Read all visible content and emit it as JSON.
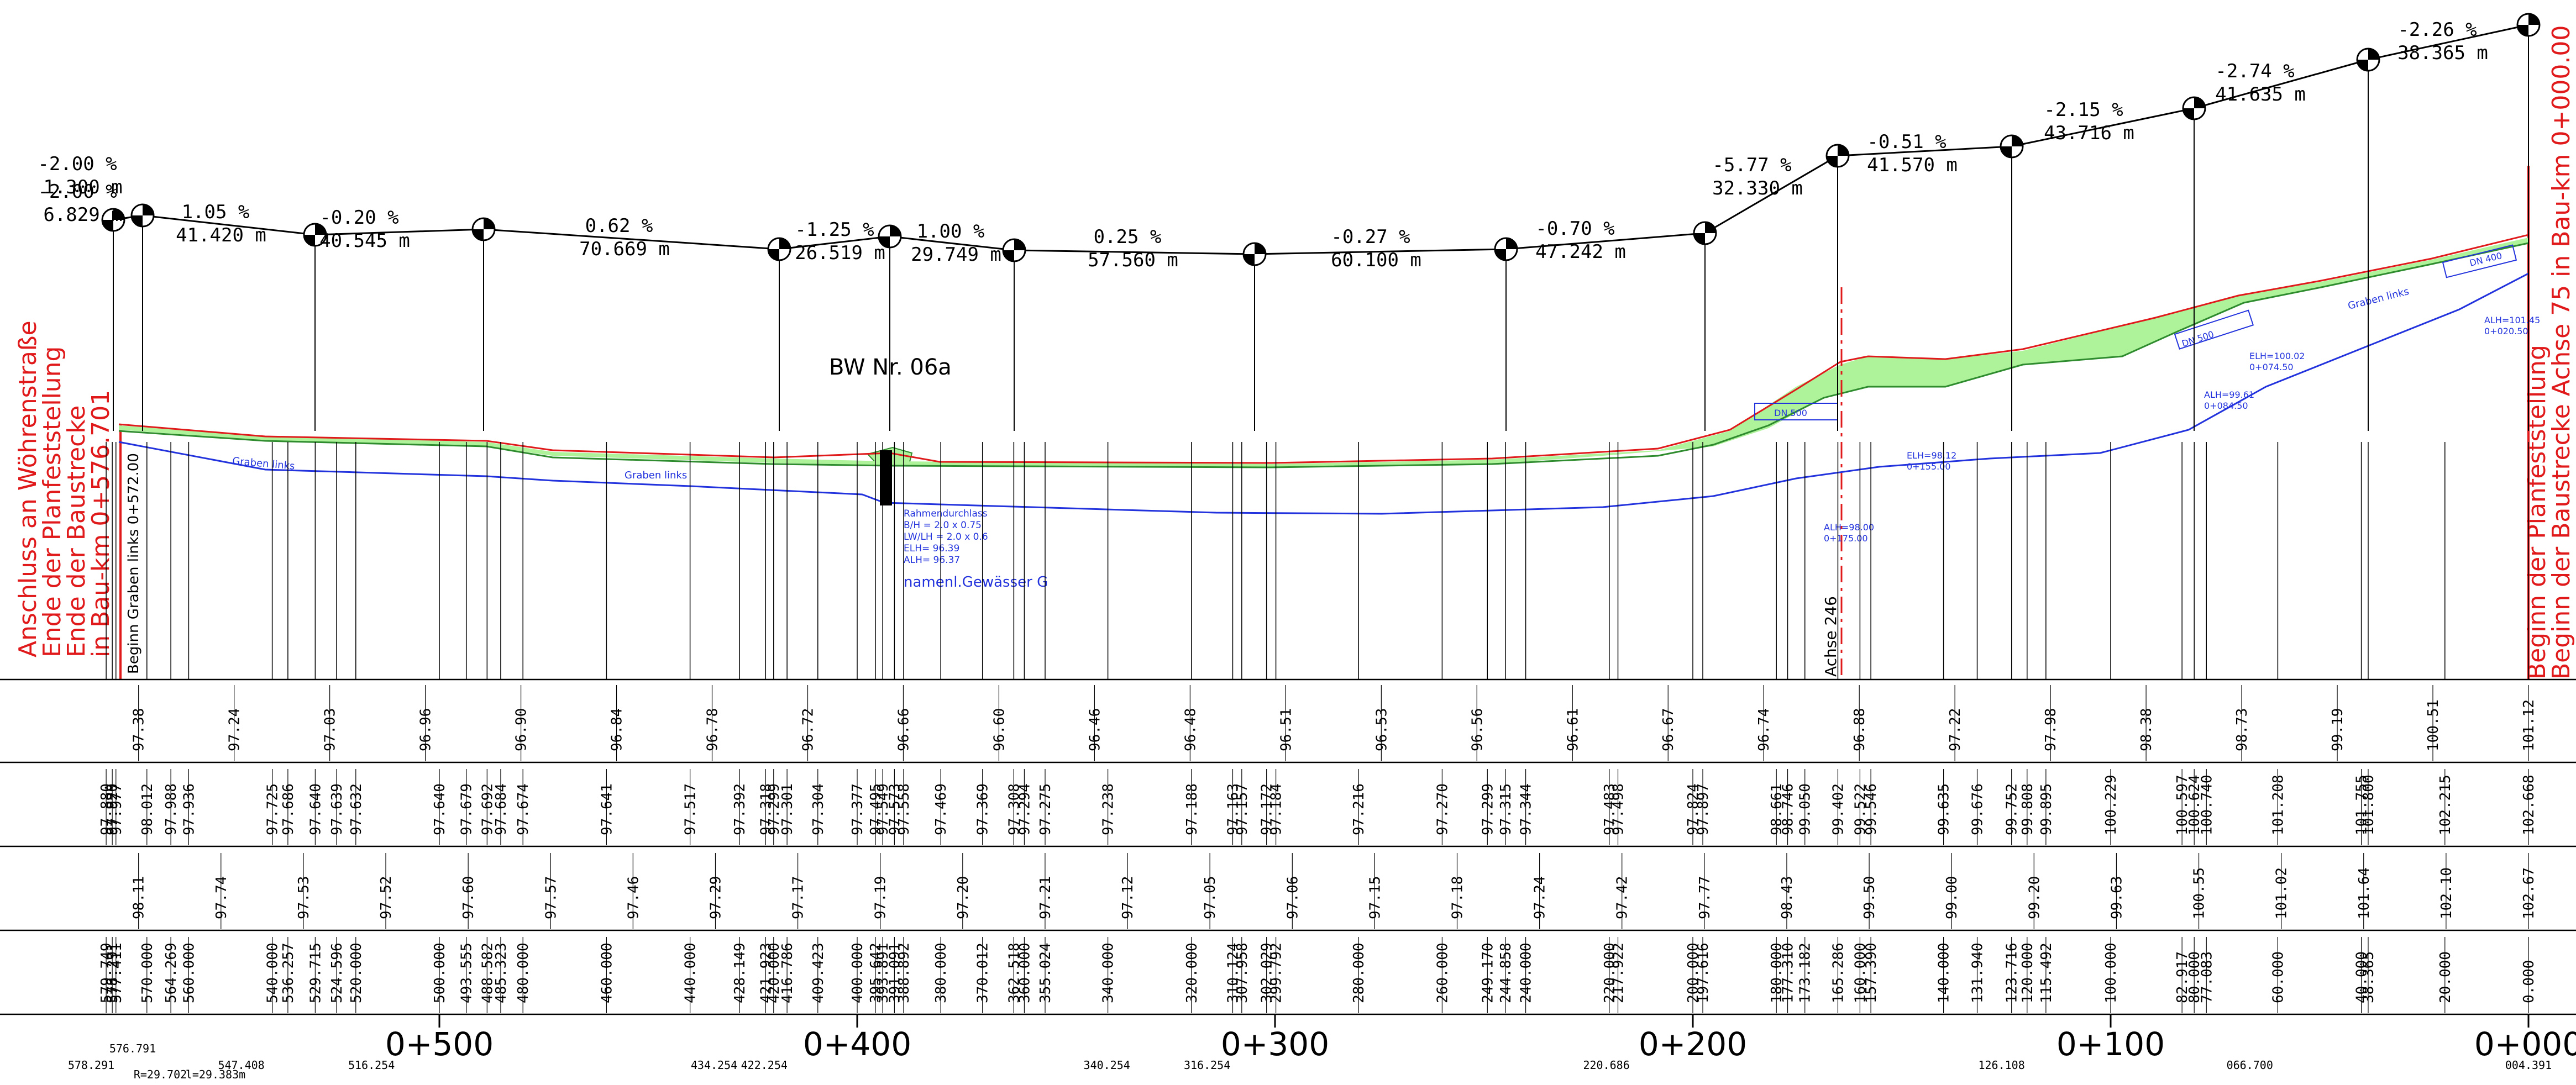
{
  "drawing": {
    "structure_label": "BW Nr.  06a",
    "axis_label": "Achse 246",
    "ditch_label": "Graben links",
    "begin_ditch": "Beginn Graben links 0+572.00",
    "culvert": {
      "lines": [
        "Rahmendurchlass",
        "B/H      = 2.0 x 0.75",
        "LW/LH  = 2.0 x 0.6",
        "ELH= 96.39",
        "ALH= 96.37"
      ],
      "water": "namenl.Gewässer G"
    },
    "pipes": [
      {
        "dn": "DN 500",
        "alh": "ALH=98.00",
        "pos": "0+175.00"
      },
      {
        "elh": "ELH=98.12",
        "pos": "0+155.00"
      },
      {
        "dn": "DN 500",
        "alh": "ALH=99.61",
        "pos": "0+084.50"
      },
      {
        "elh": "ELH=100.02",
        "pos": "0+074.50"
      },
      {
        "dn": "DN 400",
        "alh": "ALH=101.45",
        "pos": "0+020.50"
      }
    ],
    "left_note": [
      "Anschluss an Wöhrenstraße",
      "Ende der Planfeststellung",
      "Ende der Baustrecke",
      "in Bau-km 0+576.701"
    ],
    "right_note": [
      "Beginn der Planfeststellung",
      "Beginn der Baustrecke Achse 75 in Bau-km 0+000.00"
    ]
  },
  "colors": {
    "ground": "#e0191b",
    "design_green": "#2e8b2e",
    "fill_green": "#aef29a",
    "ditch_blue": "#2233dd",
    "boundary_red": "#e0191b"
  },
  "grade_profile": {
    "segments": [
      {
        "grade": "-2.00 %",
        "length": "1.300 m"
      },
      {
        "grade": "-2.00 %",
        "length": "6.829 m"
      },
      {
        "grade": "1.05 %",
        "length": "41.420 m"
      },
      {
        "grade": "-0.20 %",
        "length": "40.545 m"
      },
      {
        "grade": "0.62 %",
        "length": "70.669 m"
      },
      {
        "grade": "-1.25 %",
        "length": "26.519 m"
      },
      {
        "grade": "1.00 %",
        "length": "29.749 m"
      },
      {
        "grade": "0.25 %",
        "length": "57.560 m"
      },
      {
        "grade": "-0.27 %",
        "length": "60.100 m"
      },
      {
        "grade": "-0.70 %",
        "length": "47.242 m"
      },
      {
        "grade": "-5.77 %",
        "length": "32.330 m"
      },
      {
        "grade": "-0.51 %",
        "length": "41.570 m"
      },
      {
        "grade": "-2.15 %",
        "length": "43.716 m"
      },
      {
        "grade": "-2.74 %",
        "length": "41.635 m"
      },
      {
        "grade": "-2.26 %",
        "length": "38.365 m"
      }
    ]
  },
  "band_ground": [
    "97.38",
    "97.24",
    "97.03",
    "96.96",
    "96.90",
    "96.84",
    "96.78",
    "96.72",
    "96.66",
    "96.60",
    "96.46",
    "96.48",
    "96.51",
    "96.53",
    "96.56",
    "96.61",
    "96.67",
    "96.74",
    "96.88",
    "97.22",
    "97.98",
    "98.38",
    "98.73",
    "99.19",
    "100.51",
    "101.12"
  ],
  "band_design": [
    "97.880",
    "97.920",
    "97.977",
    "98.012",
    "97.988",
    "97.936",
    "97.725",
    "97.686",
    "97.640",
    "97.639",
    "97.632",
    "97.640",
    "97.679",
    "97.692",
    "97.684",
    "97.674",
    "97.641",
    "97.517",
    "97.392",
    "97.318",
    "97.299",
    "97.301",
    "97.304",
    "97.377",
    "97.495",
    "97.549",
    "97.573",
    "97.558",
    "97.469",
    "97.369",
    "97.308",
    "97.294",
    "97.275",
    "97.238",
    "97.188",
    "97.163",
    "97.157",
    "97.172",
    "97.184",
    "97.216",
    "97.270",
    "97.299",
    "97.315",
    "97.344",
    "97.483",
    "97.498",
    "97.824",
    "97.897",
    "98.661",
    "98.746",
    "99.050",
    "99.402",
    "99.522",
    "99.546",
    "99.635",
    "99.676",
    "99.752",
    "99.808",
    "99.895",
    "100.229",
    "100.597",
    "100.624",
    "100.740",
    "101.208",
    "101.755",
    "101.800",
    "102.215",
    "102.668"
  ],
  "band_ditch": [
    "98.11",
    "97.74",
    "97.53",
    "97.52",
    "97.60",
    "97.57",
    "97.46",
    "97.29",
    "97.17",
    "97.19",
    "97.20",
    "97.21",
    "97.12",
    "97.05",
    "97.06",
    "97.15",
    "97.18",
    "97.24",
    "97.42",
    "97.77",
    "98.43",
    "99.50",
    "99.00",
    "99.20",
    "99.63",
    "100.55",
    "101.02",
    "101.64",
    "102.10",
    "102.67"
  ],
  "band_station": [
    "579.749",
    "578.291",
    "577.411",
    "570.000",
    "564.269",
    "560.000",
    "540.000",
    "536.257",
    "529.715",
    "524.596",
    "520.000",
    "500.000",
    "493.555",
    "488.582",
    "485.323",
    "480.000",
    "460.000",
    "440.000",
    "428.149",
    "421.923",
    "420.000",
    "416.786",
    "409.423",
    "400.000",
    "395.642",
    "393.891",
    "391.091",
    "388.892",
    "380.000",
    "370.012",
    "362.518",
    "360.000",
    "355.024",
    "340.000",
    "320.000",
    "310.124",
    "307.958",
    "302.029",
    "299.792",
    "280.000",
    "260.000",
    "249.170",
    "244.858",
    "240.000",
    "220.000",
    "217.922",
    "200.000",
    "197.616",
    "180.000",
    "177.310",
    "173.182",
    "165.286",
    "160.000",
    "157.390",
    "140.000",
    "131.940",
    "123.716",
    "120.000",
    "115.492",
    "100.000",
    "82.917",
    "80.000",
    "77.083",
    "60.000",
    "40.000",
    "38.365",
    "20.000",
    "0.000"
  ],
  "stations_major": [
    "0+500",
    "0+400",
    "0+300",
    "0+200",
    "0+100",
    "0+000"
  ],
  "curve_labels": [
    "576.791",
    "578.291",
    "R=29.702",
    "l=29.383m",
    "547.408",
    "516.254",
    "434.254",
    "422.254",
    "340.254",
    "316.254",
    "220.686",
    "126.108",
    "066.700",
    "004.391"
  ]
}
